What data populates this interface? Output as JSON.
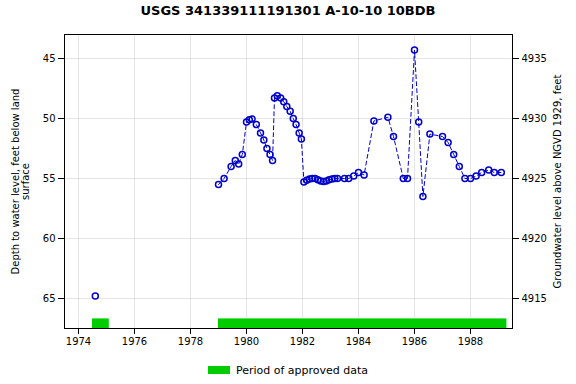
{
  "chart_data": {
    "type": "line",
    "title": "USGS 341339111191301 A-10-10 10BDB",
    "ylabel": "Depth to water level, feet below land\nsurface",
    "y2label": "Groundwater level above NGVD 1929, feet",
    "xlim": [
      1973.5,
      1989.5
    ],
    "xticks": [
      1974,
      1976,
      1978,
      1980,
      1982,
      1984,
      1986,
      1988
    ],
    "ylim": [
      67.5,
      43.0
    ],
    "yticks": [
      45,
      50,
      55,
      60,
      65
    ],
    "y2lim": [
      4912.5,
      4937.0
    ],
    "y2ticks": [
      4915,
      4920,
      4925,
      4930,
      4935
    ],
    "grid": true,
    "legend": "bottom",
    "series": [
      {
        "x": [
          1974.6
        ],
        "values": [
          64.8
        ],
        "color": "#0000cc",
        "marker": "circle",
        "line_style": "dashed"
      },
      {
        "x": [
          1979.0,
          1979.2,
          1979.45,
          1979.6,
          1979.72,
          1979.85,
          1980.0,
          1980.1,
          1980.2,
          1980.35,
          1980.5,
          1980.62,
          1980.73,
          1980.84,
          1980.93,
          1981.0,
          1981.1,
          1981.22,
          1981.33,
          1981.44,
          1981.56,
          1981.67,
          1981.77,
          1981.88,
          1981.96,
          1982.05,
          1982.15,
          1982.25,
          1982.35,
          1982.45,
          1982.55,
          1982.65,
          1982.75,
          1982.85,
          1982.95,
          1983.05,
          1983.15,
          1983.25,
          1983.5,
          1983.65,
          1983.83,
          1984.0,
          1984.2,
          1984.55,
          1985.05,
          1985.25,
          1985.6,
          1985.75,
          1986.0,
          1986.15,
          1986.3,
          1986.55,
          1987.0,
          1987.2,
          1987.4,
          1987.6,
          1987.8,
          1988.0,
          1988.2,
          1988.4,
          1988.65,
          1988.85,
          1989.1
        ],
        "values": [
          55.5,
          55.0,
          54.0,
          53.5,
          53.8,
          53.0,
          50.3,
          50.1,
          50.05,
          50.5,
          51.2,
          51.8,
          52.5,
          53.0,
          53.5,
          48.3,
          48.1,
          48.3,
          48.6,
          49.0,
          49.4,
          50.0,
          50.5,
          51.2,
          51.7,
          55.3,
          55.15,
          55.05,
          55.0,
          55.0,
          55.1,
          55.2,
          55.25,
          55.2,
          55.1,
          55.05,
          55.0,
          55.0,
          55.0,
          55.0,
          54.8,
          54.5,
          54.7,
          50.2,
          49.9,
          51.5,
          55.0,
          55.0,
          44.3,
          50.3,
          56.5,
          51.3,
          51.5,
          52.0,
          53.0,
          54.0,
          55.0,
          55.0,
          54.8,
          54.5,
          54.3,
          54.5,
          54.5
        ],
        "color": "#0000cc",
        "marker": "circle",
        "line_style": "dashed"
      },
      {
        "name": "Period of approved data",
        "type": "span",
        "color": "#00cc00",
        "periods": [
          [
            1974.5,
            1975.1
          ],
          [
            1979.0,
            1989.3
          ]
        ],
        "y": 66.7,
        "height": 0.8
      }
    ]
  }
}
